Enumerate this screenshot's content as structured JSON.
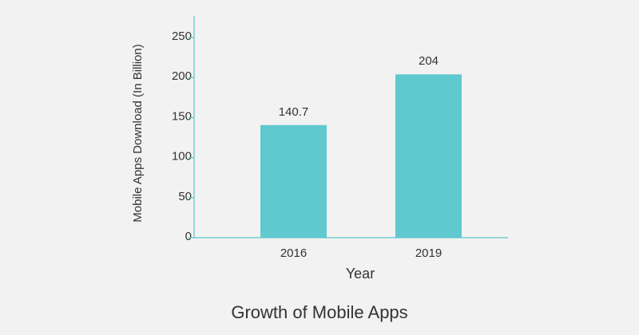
{
  "chart_data": {
    "type": "bar",
    "title": "Growth of Mobile Apps",
    "x_label": "Year",
    "y_label": "Mobile Apps Download (In Billion)",
    "categories": [
      "2016",
      "2019"
    ],
    "values": [
      140.7,
      204
    ],
    "color": "#5fc9cf",
    "ylim": [
      0,
      277
    ],
    "yticks": [
      0,
      50,
      100,
      150,
      200,
      250
    ],
    "grid": false
  }
}
